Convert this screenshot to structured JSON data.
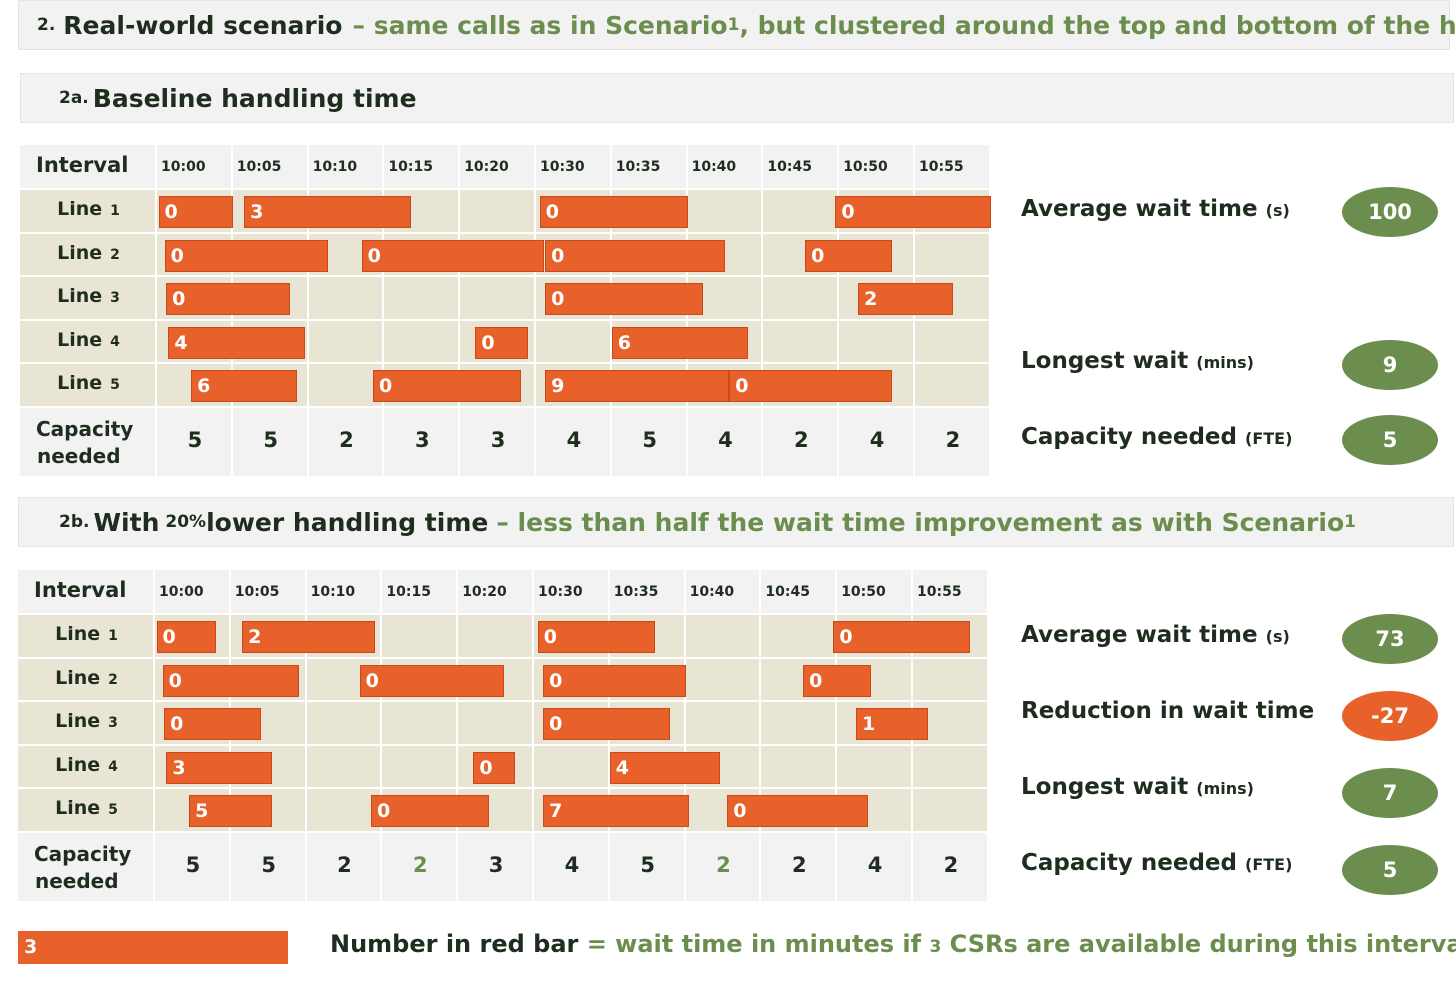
{
  "scenario": {
    "num": "2.",
    "title": "Real-world scenario",
    "desc_prefix": "– same calls as in Scenario ",
    "desc_num": "1",
    "desc_suffix": ", but clustered around the top and bottom of the hour"
  },
  "section_a": {
    "num": "2a.",
    "title": "Baseline handling time"
  },
  "section_b": {
    "num": "2b.",
    "title_pre": "With ",
    "title_num": "20%",
    "title_post": " lower handling time",
    "desc_prefix": "– less than half the wait time improvement as with Scenario ",
    "desc_num": "1"
  },
  "table_common": {
    "interval_label": "Interval",
    "times": [
      "10:00",
      "10:05",
      "10:10",
      "10:15",
      "10:20",
      "10:30",
      "10:35",
      "10:40",
      "10:45",
      "10:50",
      "10:55"
    ],
    "line_label": "Line",
    "line_nums": [
      "1",
      "2",
      "3",
      "4",
      "5"
    ],
    "capacity_label_1": "Capacity",
    "capacity_label_2": "needed"
  },
  "table_a": {
    "capacity": [
      "5",
      "5",
      "2",
      "3",
      "3",
      "4",
      "5",
      "4",
      "2",
      "4",
      "2"
    ],
    "bars": [
      {
        "line": 1,
        "start": 0.02,
        "end": 1.0,
        "wait": "0"
      },
      {
        "line": 1,
        "start": 1.15,
        "end": 3.35,
        "wait": "3"
      },
      {
        "line": 1,
        "start": 5.05,
        "end": 7.0,
        "wait": "0"
      },
      {
        "line": 1,
        "start": 8.95,
        "end": 11.0,
        "wait": "0"
      },
      {
        "line": 2,
        "start": 0.1,
        "end": 2.25,
        "wait": "0"
      },
      {
        "line": 2,
        "start": 2.7,
        "end": 5.1,
        "wait": "0"
      },
      {
        "line": 2,
        "start": 5.12,
        "end": 7.5,
        "wait": "0"
      },
      {
        "line": 2,
        "start": 8.55,
        "end": 9.7,
        "wait": "0"
      },
      {
        "line": 3,
        "start": 0.12,
        "end": 1.75,
        "wait": "0"
      },
      {
        "line": 3,
        "start": 5.12,
        "end": 7.2,
        "wait": "0"
      },
      {
        "line": 3,
        "start": 9.25,
        "end": 10.5,
        "wait": "2"
      },
      {
        "line": 4,
        "start": 0.15,
        "end": 1.95,
        "wait": "4"
      },
      {
        "line": 4,
        "start": 4.2,
        "end": 4.9,
        "wait": "0"
      },
      {
        "line": 4,
        "start": 6.0,
        "end": 7.8,
        "wait": "6"
      },
      {
        "line": 5,
        "start": 0.45,
        "end": 1.85,
        "wait": "6"
      },
      {
        "line": 5,
        "start": 2.85,
        "end": 4.8,
        "wait": "0"
      },
      {
        "line": 5,
        "start": 5.12,
        "end": 7.55,
        "wait": "9"
      },
      {
        "line": 5,
        "start": 7.55,
        "end": 9.7,
        "wait": "0"
      }
    ]
  },
  "table_b": {
    "capacity": [
      "5",
      "5",
      "2",
      "2",
      "3",
      "4",
      "5",
      "2",
      "2",
      "4",
      "2"
    ],
    "capacity_highlight": [
      false,
      false,
      false,
      true,
      false,
      false,
      false,
      true,
      false,
      false,
      false
    ],
    "bars": [
      {
        "line": 1,
        "start": 0.02,
        "end": 0.8,
        "wait": "0"
      },
      {
        "line": 1,
        "start": 1.15,
        "end": 2.9,
        "wait": "2"
      },
      {
        "line": 1,
        "start": 5.05,
        "end": 6.6,
        "wait": "0"
      },
      {
        "line": 1,
        "start": 8.95,
        "end": 10.75,
        "wait": "0"
      },
      {
        "line": 2,
        "start": 0.1,
        "end": 1.9,
        "wait": "0"
      },
      {
        "line": 2,
        "start": 2.7,
        "end": 4.6,
        "wait": "0"
      },
      {
        "line": 2,
        "start": 5.12,
        "end": 7.0,
        "wait": "0"
      },
      {
        "line": 2,
        "start": 8.55,
        "end": 9.45,
        "wait": "0"
      },
      {
        "line": 3,
        "start": 0.12,
        "end": 1.4,
        "wait": "0"
      },
      {
        "line": 3,
        "start": 5.12,
        "end": 6.8,
        "wait": "0"
      },
      {
        "line": 3,
        "start": 9.25,
        "end": 10.2,
        "wait": "1"
      },
      {
        "line": 4,
        "start": 0.15,
        "end": 1.55,
        "wait": "3"
      },
      {
        "line": 4,
        "start": 4.2,
        "end": 4.75,
        "wait": "0"
      },
      {
        "line": 4,
        "start": 6.0,
        "end": 7.45,
        "wait": "4"
      },
      {
        "line": 5,
        "start": 0.45,
        "end": 1.55,
        "wait": "5"
      },
      {
        "line": 5,
        "start": 2.85,
        "end": 4.4,
        "wait": "0"
      },
      {
        "line": 5,
        "start": 5.12,
        "end": 7.05,
        "wait": "7"
      },
      {
        "line": 5,
        "start": 7.55,
        "end": 9.4,
        "wait": "0"
      }
    ]
  },
  "stats_a": {
    "avg_wait_label": "Average wait time ",
    "avg_wait_unit": "(s)",
    "avg_wait_value": "100",
    "longest_label": "Longest wait ",
    "longest_unit": "(mins)",
    "longest_value": "9",
    "capacity_label": "Capacity needed ",
    "capacity_unit": "(FTE)",
    "capacity_value": "5"
  },
  "stats_b": {
    "avg_wait_label": "Average wait time ",
    "avg_wait_unit": "(s)",
    "avg_wait_value": "73",
    "reduction_label": "Reduction in wait time",
    "reduction_value": "-27",
    "longest_label": "Longest wait ",
    "longest_unit": "(mins)",
    "longest_value": "7",
    "capacity_label": "Capacity needed ",
    "capacity_unit": "(FTE)",
    "capacity_value": "5"
  },
  "legend": {
    "bar_value": "3",
    "text_dark": "Number in red bar",
    "text_green_pre": " = wait time in minutes if ",
    "text_green_num": "3",
    "text_green_post": " CSRs are available during this interval"
  },
  "colors": {
    "bar": "#e8612a",
    "accent_green": "#6b8e4e",
    "row_bg": "#e8e5d5",
    "header_bg": "#f2f2f2",
    "text_dark": "#1f2d1f"
  }
}
